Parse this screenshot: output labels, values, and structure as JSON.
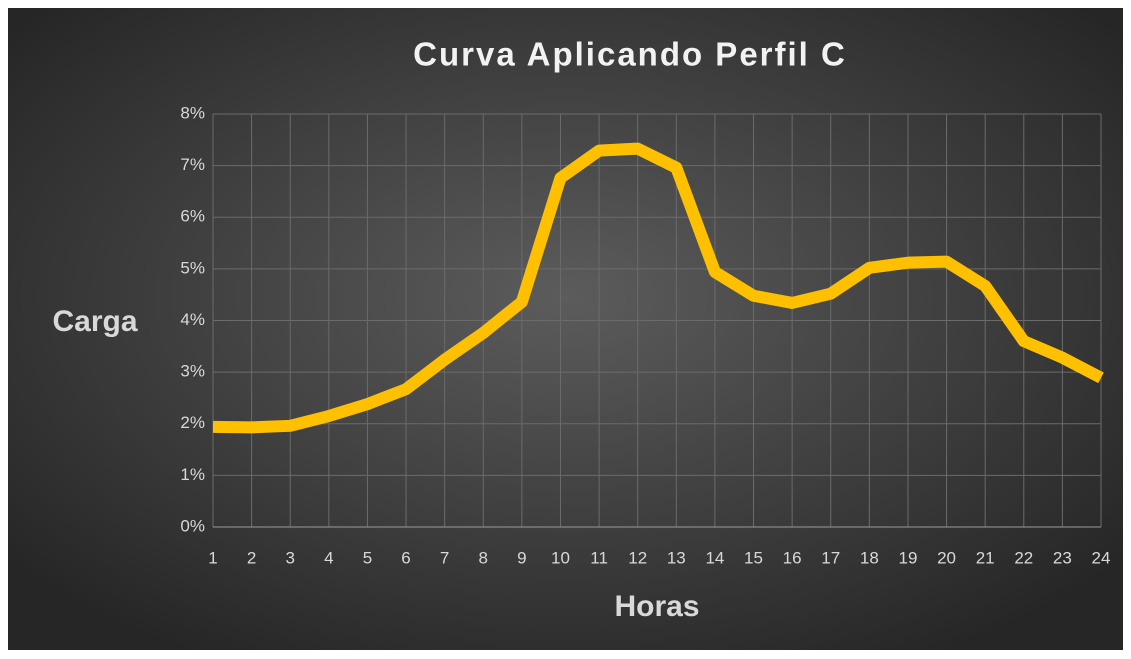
{
  "chart_data": {
    "type": "line",
    "title": "Curva Aplicando Perfil C",
    "x_label": "Horas",
    "y_label": "Carga",
    "x": [
      1,
      2,
      3,
      4,
      5,
      6,
      7,
      8,
      9,
      10,
      11,
      12,
      13,
      14,
      15,
      16,
      17,
      18,
      19,
      20,
      21,
      22,
      23,
      24
    ],
    "series": [
      {
        "name": "Perfil C",
        "color": "#ffc000",
        "values": [
          1.94,
          1.93,
          1.96,
          2.15,
          2.38,
          2.67,
          3.24,
          3.76,
          4.36,
          6.76,
          7.29,
          7.33,
          6.96,
          4.94,
          4.48,
          4.34,
          4.52,
          5.02,
          5.12,
          5.14,
          4.67,
          3.6,
          3.28,
          2.89
        ]
      }
    ],
    "xlim": [
      1,
      24
    ],
    "xticks": [
      1,
      2,
      3,
      4,
      5,
      6,
      7,
      8,
      9,
      10,
      11,
      12,
      13,
      14,
      15,
      16,
      17,
      18,
      19,
      20,
      21,
      22,
      23,
      24
    ],
    "ylim": [
      0,
      8
    ],
    "yticks": [
      {
        "value": 0,
        "label": "0%"
      },
      {
        "value": 1,
        "label": "1%"
      },
      {
        "value": 2,
        "label": "2%"
      },
      {
        "value": 3,
        "label": "3%"
      },
      {
        "value": 4,
        "label": "4%"
      },
      {
        "value": 5,
        "label": "5%"
      },
      {
        "value": 6,
        "label": "6%"
      },
      {
        "value": 7,
        "label": "7%"
      },
      {
        "value": 8,
        "label": "8%"
      }
    ],
    "grid": true
  }
}
